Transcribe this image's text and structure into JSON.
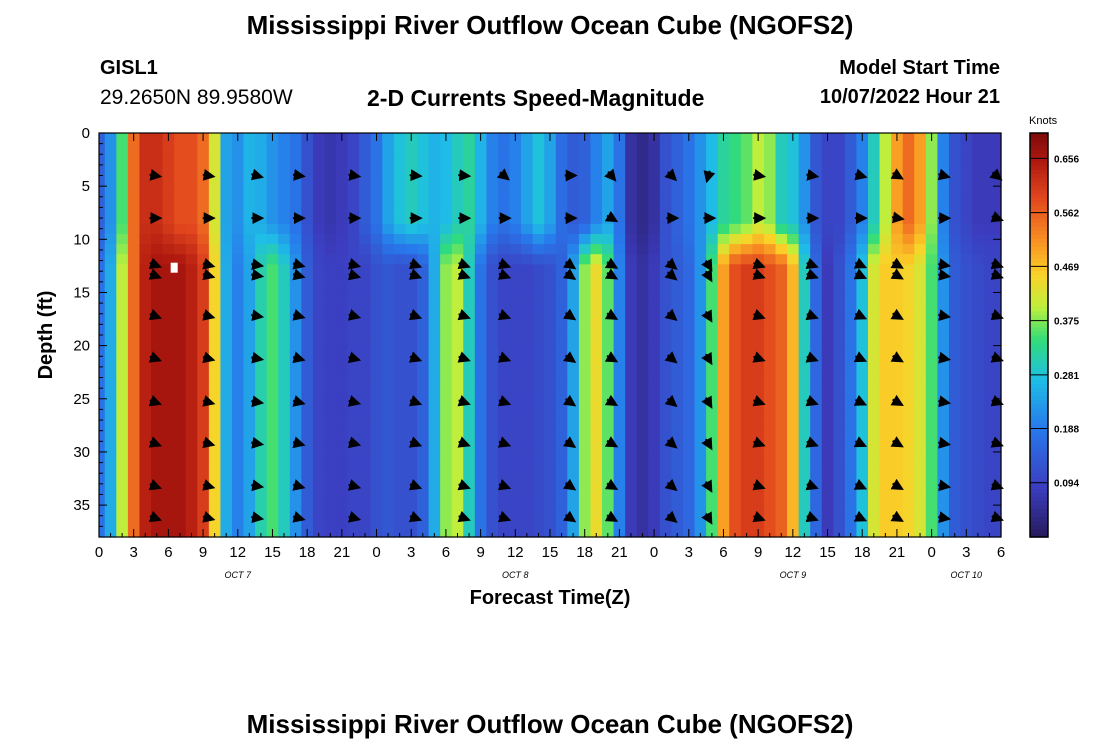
{
  "header": {
    "title": "Mississippi River Outflow Ocean Cube (NGOFS2)",
    "station": "GISL1",
    "coords": "29.2650N  89.9580W",
    "subtitle": "2-D Currents Speed-Magnitude",
    "start_label": "Model Start Time",
    "start_value": "10/07/2022 Hour 21",
    "second_title": "Mississippi River Outflow Ocean Cube (NGOFS2)"
  },
  "chart_data": {
    "type": "heatmap",
    "title": "2-D Currents Speed-Magnitude",
    "xlabel": "Forecast Time(Z)",
    "ylabel": "Depth (ft)",
    "x_range_hours": [
      0,
      78
    ],
    "x_tick_labels": [
      "0",
      "3",
      "6",
      "9",
      "12",
      "15",
      "18",
      "21",
      "0",
      "3",
      "6",
      "9",
      "12",
      "15",
      "18",
      "21",
      "0",
      "3",
      "6",
      "9",
      "12",
      "15",
      "18",
      "21",
      "0",
      "3",
      "6"
    ],
    "date_labels": [
      {
        "text": "OCT 7",
        "hour": 12
      },
      {
        "text": "OCT 8",
        "hour": 36
      },
      {
        "text": "OCT 9",
        "hour": 60
      },
      {
        "text": "OCT 10",
        "hour": 75
      }
    ],
    "ylim": [
      0,
      38
    ],
    "y_ticks": [
      0,
      5,
      10,
      15,
      20,
      25,
      30,
      35
    ],
    "colorbar": {
      "label": "Knots",
      "range": [
        0,
        0.7
      ],
      "ticks": [
        "0.656",
        "0.562",
        "0.469",
        "0.375",
        "0.281",
        "0.188",
        "0.094"
      ]
    },
    "hourly_speed_deep_knots": [
      0.18,
      0.25,
      0.4,
      0.55,
      0.64,
      0.66,
      0.66,
      0.66,
      0.64,
      0.6,
      0.45,
      0.25,
      0.2,
      0.24,
      0.31,
      0.35,
      0.3,
      0.22,
      0.14,
      0.1,
      0.09,
      0.09,
      0.1,
      0.1,
      0.12,
      0.13,
      0.12,
      0.12,
      0.15,
      0.25,
      0.38,
      0.4,
      0.3,
      0.18,
      0.12,
      0.1,
      0.1,
      0.1,
      0.11,
      0.12,
      0.15,
      0.24,
      0.38,
      0.44,
      0.36,
      0.2,
      0.08,
      0.06,
      0.08,
      0.12,
      0.14,
      0.16,
      0.22,
      0.35,
      0.5,
      0.58,
      0.6,
      0.6,
      0.58,
      0.56,
      0.48,
      0.3,
      0.16,
      0.08,
      0.12,
      0.18,
      0.28,
      0.42,
      0.46,
      0.46,
      0.45,
      0.42,
      0.35,
      0.22,
      0.14,
      0.12,
      0.11,
      0.1,
      0.1
    ],
    "hourly_speed_surface_knots": [
      0.15,
      0.22,
      0.35,
      0.55,
      0.62,
      0.62,
      0.6,
      0.58,
      0.58,
      0.55,
      0.42,
      0.24,
      0.22,
      0.26,
      0.25,
      0.22,
      0.2,
      0.18,
      0.12,
      0.08,
      0.07,
      0.08,
      0.1,
      0.14,
      0.18,
      0.24,
      0.28,
      0.3,
      0.28,
      0.26,
      0.27,
      0.3,
      0.32,
      0.26,
      0.2,
      0.18,
      0.2,
      0.24,
      0.28,
      0.24,
      0.17,
      0.14,
      0.15,
      0.2,
      0.24,
      0.18,
      0.06,
      0.04,
      0.06,
      0.12,
      0.15,
      0.18,
      0.22,
      0.27,
      0.32,
      0.34,
      0.36,
      0.4,
      0.38,
      0.3,
      0.28,
      0.22,
      0.13,
      0.1,
      0.1,
      0.14,
      0.2,
      0.3,
      0.4,
      0.5,
      0.55,
      0.5,
      0.38,
      0.2,
      0.12,
      0.1,
      0.08,
      0.08,
      0.08
    ],
    "arrow_times_hours": [
      4.8,
      9.4,
      13.6,
      17.2,
      22,
      27.3,
      31.5,
      35,
      40.7,
      44.3,
      49.5,
      52.7,
      57,
      61.6,
      65.8,
      69,
      73,
      77.6
    ],
    "arrow_directions_deg": [
      [
        -20,
        -15,
        -10,
        -15,
        -15,
        -20,
        -20,
        -20,
        -35,
        -30,
        -40,
        -60,
        -20,
        -20,
        -25,
        -30,
        -10,
        -20
      ],
      [
        -10,
        -10,
        -15,
        -8,
        -10,
        -5,
        -5,
        -40,
        0,
        -50,
        -45,
        -105,
        -10,
        -10,
        -15,
        -30,
        -15,
        -40
      ],
      [
        0,
        0,
        0,
        0,
        0,
        0,
        0,
        0,
        0,
        -30,
        0,
        0,
        0,
        0,
        0,
        -10,
        0,
        -20
      ]
    ]
  }
}
